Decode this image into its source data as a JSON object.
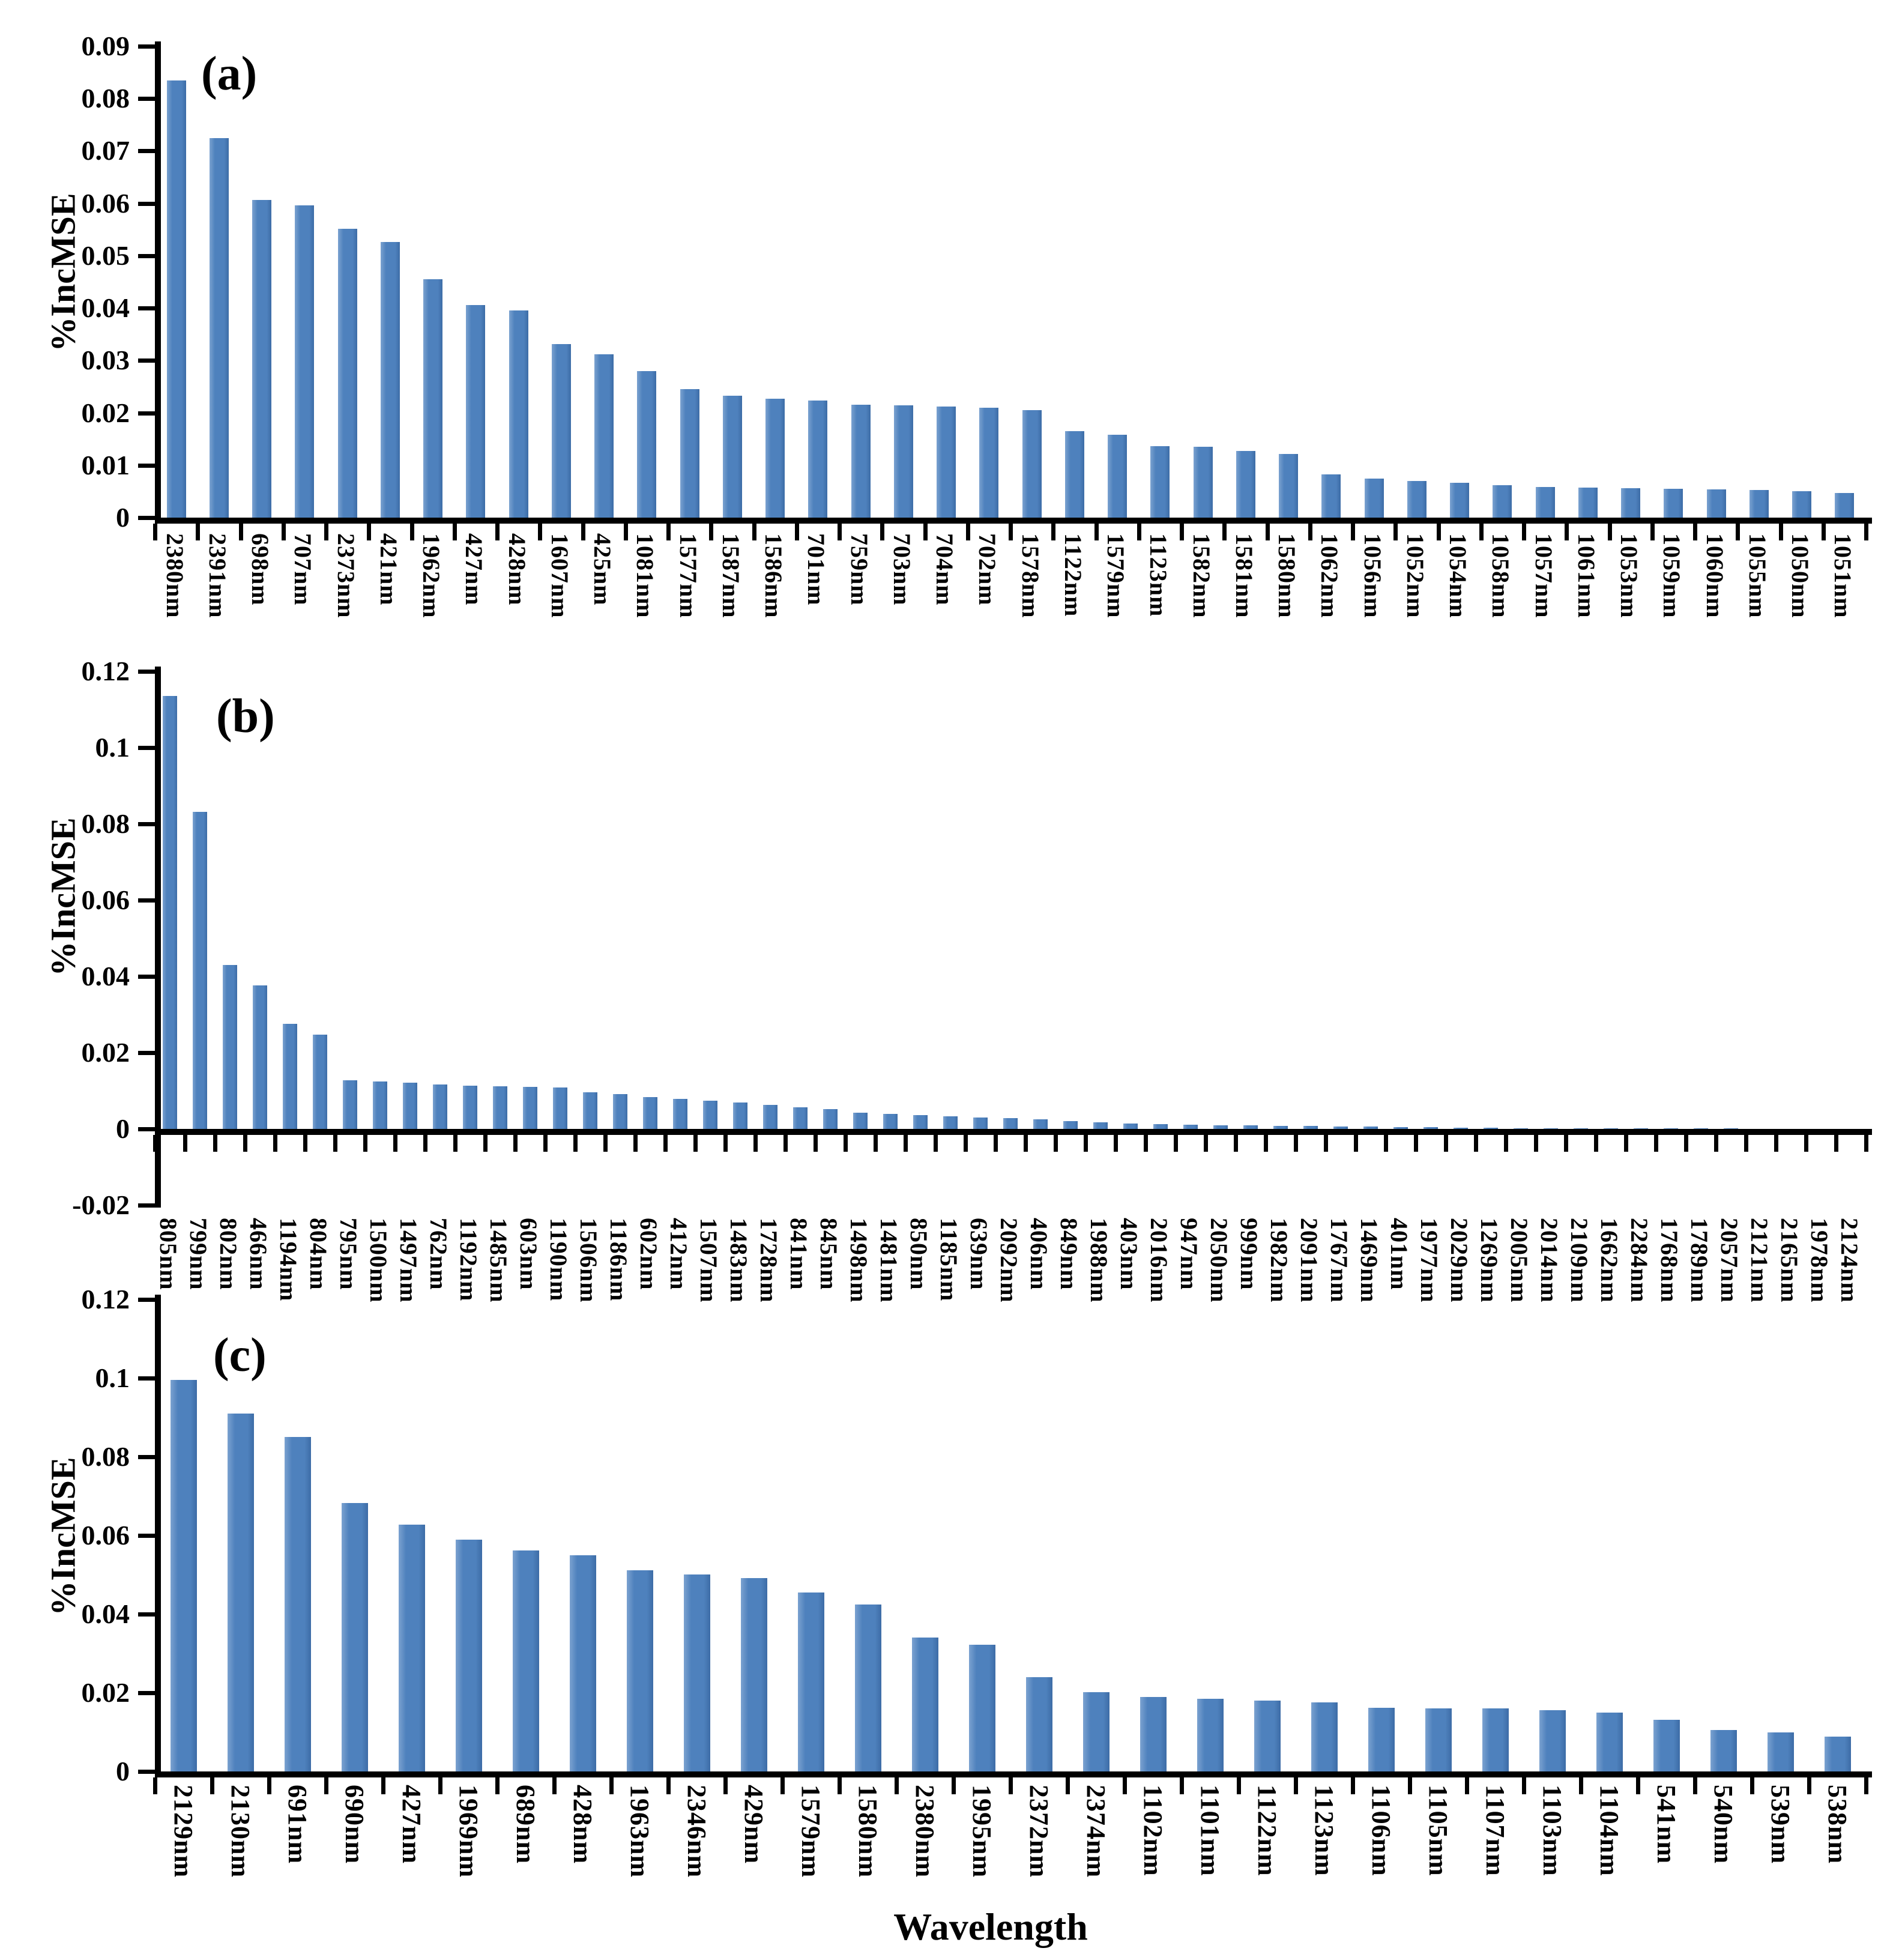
{
  "figure": {
    "x_axis_title": "Wavelength",
    "bar_color": "#4E81BD",
    "axis_color": "#000000"
  },
  "chart_data": [
    {
      "type": "bar",
      "panel": "(a)",
      "ylabel": "%IncMSE",
      "xlabel": "",
      "ylim": [
        0,
        0.09
      ],
      "grid": false,
      "legend": "none",
      "ytick_values": [
        0,
        0.01,
        0.02,
        0.03,
        0.04,
        0.05,
        0.06,
        0.07,
        0.08,
        0.09
      ],
      "ytick_labels": [
        "0",
        "0.01",
        "0.02",
        "0.03",
        "0.04",
        "0.05",
        "0.06",
        "0.07",
        "0.08",
        "0.09"
      ],
      "categories": [
        "2380nm",
        "2391nm",
        "698nm",
        "707nm",
        "2373nm",
        "421nm",
        "1962nm",
        "427nm",
        "428nm",
        "1607nm",
        "425nm",
        "1081nm",
        "1577nm",
        "1587nm",
        "1586nm",
        "701nm",
        "759nm",
        "703nm",
        "704nm",
        "702nm",
        "1578nm",
        "1122nm",
        "1579nm",
        "1123nm",
        "1582nm",
        "1581nm",
        "1580nm",
        "1062nm",
        "1056nm",
        "1052nm",
        "1054nm",
        "1058nm",
        "1057nm",
        "1061nm",
        "1053nm",
        "1059nm",
        "1060nm",
        "1055nm",
        "1050nm",
        "1051nm"
      ],
      "values": [
        0.0835,
        0.0725,
        0.0607,
        0.0596,
        0.0551,
        0.0526,
        0.0455,
        0.0406,
        0.0396,
        0.0331,
        0.0312,
        0.028,
        0.0245,
        0.0233,
        0.0227,
        0.0224,
        0.0215,
        0.0214,
        0.0212,
        0.021,
        0.0205,
        0.0165,
        0.0158,
        0.0136,
        0.0135,
        0.0127,
        0.0122,
        0.0083,
        0.0075,
        0.007,
        0.0066,
        0.0062,
        0.0058,
        0.0057,
        0.0056,
        0.0055,
        0.0054,
        0.0053,
        0.005,
        0.0047
      ]
    },
    {
      "type": "bar",
      "panel": "(b)",
      "ylabel": "%IncMSE",
      "xlabel": "",
      "ylim": [
        -0.02,
        0.12
      ],
      "grid": false,
      "legend": "none",
      "ytick_values": [
        -0.02,
        0,
        0.02,
        0.04,
        0.06,
        0.08,
        0.1,
        0.12
      ],
      "ytick_labels": [
        "-0.02",
        "0",
        "0.02",
        "0.04",
        "0.06",
        "0.08",
        "0.1",
        "0.12"
      ],
      "categories": [
        "805nm",
        "799nm",
        "802nm",
        "466nm",
        "1194nm",
        "804nm",
        "795nm",
        "1500nm",
        "1497nm",
        "762nm",
        "1192nm",
        "1485nm",
        "603nm",
        "1190nm",
        "1506nm",
        "1186nm",
        "602nm",
        "412nm",
        "1507nm",
        "1483nm",
        "1728nm",
        "841nm",
        "845nm",
        "1498nm",
        "1481nm",
        "850nm",
        "1185nm",
        "639nm",
        "2092nm",
        "406nm",
        "849nm",
        "1988nm",
        "403nm",
        "2016nm",
        "947nm",
        "2050nm",
        "999nm",
        "1982nm",
        "2091nm",
        "1767nm",
        "1469nm",
        "401nm",
        "1977nm",
        "2029nm",
        "1269nm",
        "2005nm",
        "2014nm",
        "2109nm",
        "1662nm",
        "2284nm",
        "1768nm",
        "1789nm",
        "2057nm",
        "2121nm",
        "2165nm",
        "1978nm",
        "2124nm"
      ],
      "values": [
        0.1135,
        0.0832,
        0.043,
        0.0376,
        0.0276,
        0.0248,
        0.0128,
        0.0124,
        0.0121,
        0.0116,
        0.0113,
        0.0112,
        0.011,
        0.0108,
        0.0096,
        0.0091,
        0.0083,
        0.0079,
        0.0074,
        0.007,
        0.0063,
        0.0056,
        0.0052,
        0.0043,
        0.004,
        0.0036,
        0.0033,
        0.003,
        0.0028,
        0.0025,
        0.0021,
        0.0017,
        0.0014,
        0.0012,
        0.0011,
        0.001,
        0.0009,
        0.0008,
        0.0008,
        0.0007,
        0.0006,
        0.0005,
        0.0004,
        0.0003,
        0.0003,
        0.0002,
        0.0002,
        0.0002,
        0.0001,
        0.0001,
        0.0001,
        0.0001,
        0.0001,
        0.0,
        0.0,
        0.0,
        0.0
      ]
    },
    {
      "type": "bar",
      "panel": "(c)",
      "ylabel": "%IncMSE",
      "xlabel": "Wavelength",
      "ylim": [
        0,
        0.12
      ],
      "grid": false,
      "legend": "none",
      "ytick_values": [
        0,
        0.02,
        0.04,
        0.06,
        0.08,
        0.1,
        0.12
      ],
      "ytick_labels": [
        "0",
        "0.02",
        "0.04",
        "0.06",
        "0.08",
        "0.1",
        "0.12"
      ],
      "categories": [
        "2129nm",
        "2130nm",
        "691nm",
        "690nm",
        "427nm",
        "1969nm",
        "689nm",
        "428nm",
        "1963nm",
        "2346nm",
        "429nm",
        "1579nm",
        "1580nm",
        "2380nm",
        "1995nm",
        "2372nm",
        "2374nm",
        "1102nm",
        "1101nm",
        "1122nm",
        "1123nm",
        "1106nm",
        "1105nm",
        "1107nm",
        "1103nm",
        "1104nm",
        "541nm",
        "540nm",
        "539nm",
        "538nm"
      ],
      "values": [
        0.0995,
        0.091,
        0.085,
        0.0682,
        0.0627,
        0.059,
        0.0562,
        0.055,
        0.0512,
        0.05,
        0.0491,
        0.0455,
        0.0425,
        0.034,
        0.0322,
        0.024,
        0.0201,
        0.019,
        0.0184,
        0.018,
        0.0176,
        0.0162,
        0.0161,
        0.016,
        0.0155,
        0.015,
        0.0131,
        0.0106,
        0.0099,
        0.0088
      ]
    }
  ]
}
